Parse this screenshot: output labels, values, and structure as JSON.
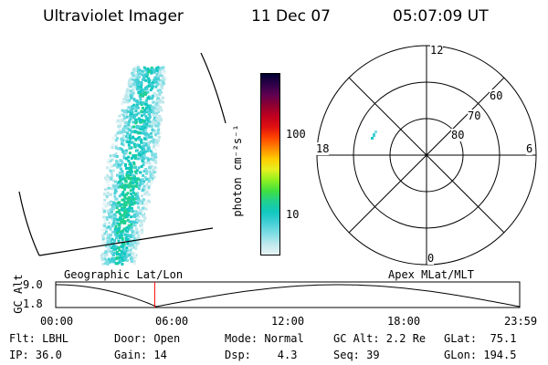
{
  "header": {
    "instrument": "Ultraviolet Imager",
    "date": "11 Dec 07",
    "time": "05:07:09 UT"
  },
  "colorbar": {
    "label": "photon cm⁻²s⁻¹",
    "ticks": [
      "100",
      "10"
    ],
    "tick_values": [
      100,
      10
    ],
    "colors": [
      "#e8f4f6",
      "#bde8ec",
      "#7ddde4",
      "#44cfd6",
      "#10c8c0",
      "#20d090",
      "#40e040",
      "#90f020",
      "#e6f020",
      "#ffcc00",
      "#ff8800",
      "#ff4400",
      "#e01010",
      "#c00020",
      "#900030",
      "#600050",
      "#30004a",
      "#000030"
    ]
  },
  "polar_plot": {
    "mlt_labels": {
      "top": "12",
      "left": "18",
      "right": "6",
      "bottom": "0"
    },
    "lat_labels": [
      "60",
      "70",
      "80"
    ]
  },
  "timeline": {
    "y_axis_label": "GC Alt",
    "y_ticks": [
      "9.0",
      "1.8"
    ],
    "left_title": "Geographic Lat/Lon",
    "right_title": "Apex MLat/MLT",
    "x_ticks": [
      "00:00",
      "06:00",
      "12:00",
      "18:00",
      "23:59"
    ],
    "current_time_hours": 5.12,
    "marker_color": "#ff0000"
  },
  "footer": {
    "flt": "Flt: LBHL",
    "ip": "IP: 36.0",
    "door": "Door: Open",
    "gain": "Gain: 14",
    "mode": "Mode: Normal",
    "dsp": "Dsp:    4.3",
    "gc_alt": "GC Alt: 2.2 Re",
    "seq": "Seq: 39",
    "glat": "GLat:  75.1",
    "glon": "GLon: 194.5"
  }
}
